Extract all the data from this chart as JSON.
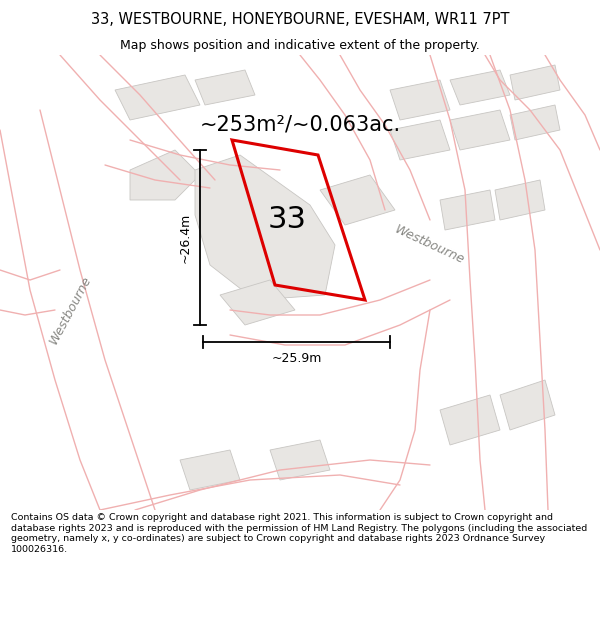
{
  "title_line1": "33, WESTBOURNE, HONEYBOURNE, EVESHAM, WR11 7PT",
  "title_line2": "Map shows position and indicative extent of the property.",
  "area_text": "~253m²/~0.063ac.",
  "plot_number": "33",
  "dim_width": "~25.9m",
  "dim_height": "~26.4m",
  "street_name_right": "Westbourne",
  "street_name_left": "Westbourne",
  "footer_text": "Contains OS data © Crown copyright and database right 2021. This information is subject to Crown copyright and database rights 2023 and is reproduced with the permission of HM Land Registry. The polygons (including the associated geometry, namely x, y co-ordinates) are subject to Crown copyright and database rights 2023 Ordnance Survey 100026316.",
  "bg_color": "#f7f5f2",
  "plot_edge_color": "#dd0000",
  "road_color": "#f0b0b0",
  "building_fill": "#e8e6e3",
  "building_edge": "#c8c6c3"
}
